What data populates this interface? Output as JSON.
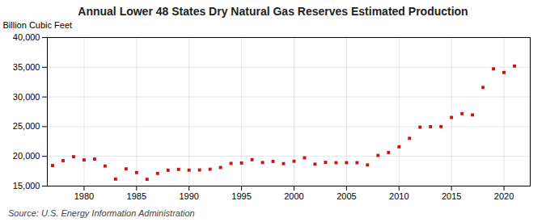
{
  "chart_data": {
    "type": "scatter",
    "title": "Annual Lower 48 States Dry Natural Gas Reserves Estimated Production",
    "ylabel": "Billion Cubic Feet",
    "annotations": [
      "Source: U.S. Energy Information Administration"
    ],
    "color": "#cc1111",
    "marker": "square",
    "grid": true,
    "xlim": [
      1976.5,
      2022.5
    ],
    "xticks": [
      1980,
      1985,
      1990,
      1995,
      2000,
      2005,
      2010,
      2015,
      2020
    ],
    "ylim": [
      15000,
      40000
    ],
    "yticks": [
      {
        "value": 15000,
        "label": "15,000"
      },
      {
        "value": 20000,
        "label": "20,000"
      },
      {
        "value": 25000,
        "label": "25,000"
      },
      {
        "value": 30000,
        "label": "30,000"
      },
      {
        "value": 35000,
        "label": "35,000"
      },
      {
        "value": 40000,
        "label": "40,000"
      }
    ],
    "x": [
      1977,
      1978,
      1979,
      1980,
      1981,
      1982,
      1983,
      1984,
      1985,
      1986,
      1987,
      1988,
      1989,
      1990,
      1991,
      1992,
      1993,
      1994,
      1995,
      1996,
      1997,
      1998,
      1999,
      2000,
      2001,
      2002,
      2003,
      2004,
      2005,
      2006,
      2007,
      2008,
      2009,
      2010,
      2011,
      2012,
      2013,
      2014,
      2015,
      2016,
      2017,
      2018,
      2019,
      2020,
      2021
    ],
    "values": [
      18467,
      19280,
      19942,
      19403,
      19541,
      18375,
      16177,
      17893,
      17273,
      16139,
      17127,
      17668,
      17811,
      17682,
      17717,
      17838,
      18123,
      18812,
      18877,
      19443,
      18967,
      19150,
      18777,
      19182,
      19756,
      18692,
      19000,
      18938,
      18938,
      18939,
      18553,
      20158,
      20656,
      21611,
      23036,
      24912,
      24997,
      25013,
      26547,
      27191,
      26975,
      31600,
      34729,
      34120,
      35200
    ]
  }
}
